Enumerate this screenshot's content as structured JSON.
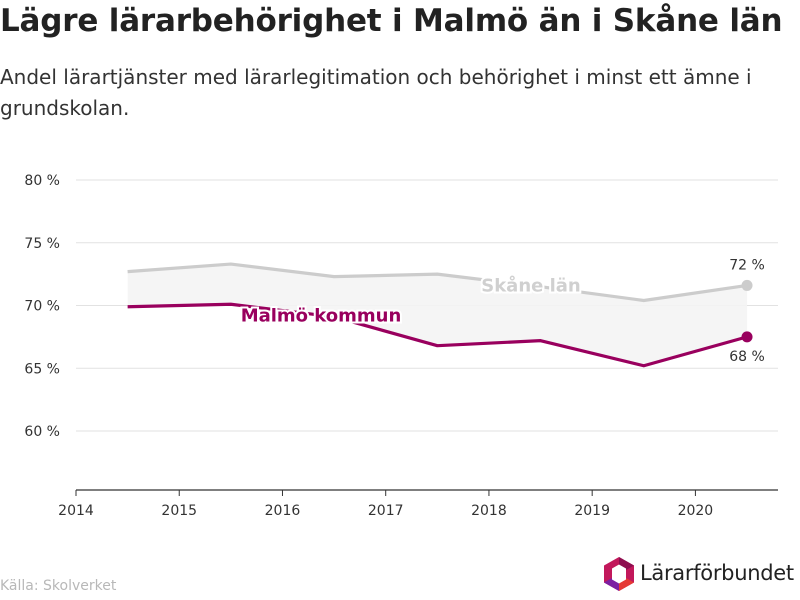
{
  "title": "Lägre lärarbehörighet i Malmö än i Skåne län",
  "subtitle": "Andel lärartjänster med lärarlegitimation och behörighet i minst ett ämne i grundskolan.",
  "source": "Källa: Skolverket",
  "logo_text": "Lärarförbundet",
  "chart_data": {
    "type": "line",
    "x_ticks": [
      "2014",
      "2015",
      "2016",
      "2017",
      "2018",
      "2019",
      "2020"
    ],
    "y_ticks": [
      "60 %",
      "65 %",
      "70 %",
      "75 %",
      "80 %"
    ],
    "ylim": [
      55.3,
      80
    ],
    "xlim": [
      2014,
      2020.8
    ],
    "grid": true,
    "series": [
      {
        "name": "Skåne län",
        "color": "#cccccc",
        "label_color": "#d0d0d0",
        "x": [
          2014.5,
          2015.5,
          2016.5,
          2017.5,
          2018.5,
          2019.5,
          2020.5
        ],
        "values": [
          72.7,
          73.3,
          72.3,
          72.5,
          71.5,
          70.4,
          71.6
        ],
        "end_label": "72 %"
      },
      {
        "name": "Malmö kommun",
        "color": "#99005e",
        "label_color": "#99005e",
        "x": [
          2014.5,
          2015.5,
          2016.5,
          2017.5,
          2018.5,
          2019.5,
          2020.5
        ],
        "values": [
          69.9,
          70.1,
          69.1,
          66.8,
          67.2,
          65.2,
          67.5
        ],
        "end_label": "68 %"
      }
    ]
  }
}
